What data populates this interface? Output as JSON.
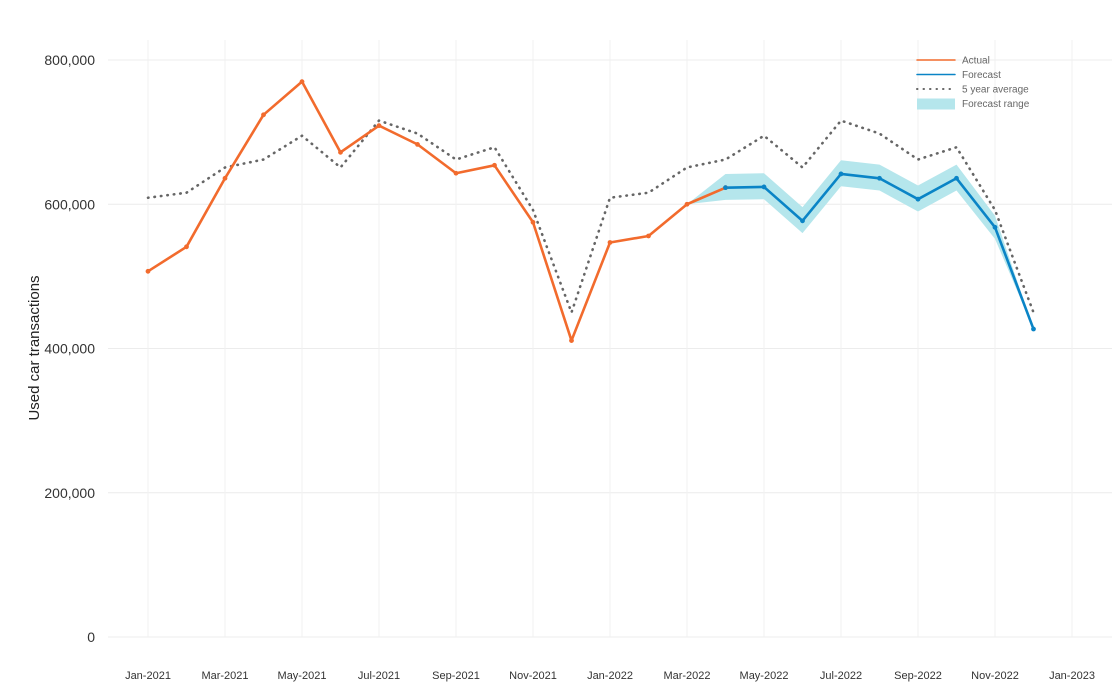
{
  "chart_data": {
    "type": "line",
    "title": "",
    "xlabel": "",
    "ylabel": "Used car transactions",
    "ylim": [
      0,
      800000
    ],
    "yticks": [
      0,
      200000,
      400000,
      600000,
      800000
    ],
    "ytick_labels": [
      "0",
      "200,000",
      "400,000",
      "600,000",
      "800,000"
    ],
    "xlim": [
      "2021-01",
      "2023-01"
    ],
    "xticks": [
      "2021-01",
      "2021-03",
      "2021-05",
      "2021-07",
      "2021-09",
      "2021-11",
      "2022-01",
      "2022-03",
      "2022-05",
      "2022-07",
      "2022-09",
      "2022-11",
      "2023-01"
    ],
    "xtick_labels": [
      "Jan-2021",
      "Mar-2021",
      "May-2021",
      "Jul-2021",
      "Sep-2021",
      "Nov-2021",
      "Jan-2022",
      "Mar-2022",
      "May-2022",
      "Jul-2022",
      "Sep-2022",
      "Nov-2022",
      "Jan-2023"
    ],
    "grid": true,
    "legend_position": "top-right",
    "series": [
      {
        "name": "Actual",
        "color": "#f26b2d",
        "style": "solid",
        "x": [
          "2021-01",
          "2021-02",
          "2021-03",
          "2021-04",
          "2021-05",
          "2021-06",
          "2021-07",
          "2021-08",
          "2021-09",
          "2021-10",
          "2021-11",
          "2021-12",
          "2022-01",
          "2022-02",
          "2022-03",
          "2022-04"
        ],
        "y": [
          507000,
          541000,
          636000,
          724000,
          770000,
          672000,
          709000,
          683000,
          643000,
          654000,
          575000,
          411000,
          547000,
          556000,
          600000,
          623000
        ]
      },
      {
        "name": "Forecast",
        "color": "#0a84c6",
        "style": "solid",
        "x": [
          "2022-04",
          "2022-05",
          "2022-06",
          "2022-07",
          "2022-08",
          "2022-09",
          "2022-10",
          "2022-11",
          "2022-12"
        ],
        "y": [
          623000,
          624000,
          577000,
          642000,
          636000,
          607000,
          636000,
          568000,
          427000
        ]
      },
      {
        "name": "5 year average",
        "color": "#666666",
        "style": "dotted",
        "x": [
          "2021-01",
          "2021-02",
          "2021-03",
          "2021-04",
          "2021-05",
          "2021-06",
          "2021-07",
          "2021-08",
          "2021-09",
          "2021-10",
          "2021-11",
          "2021-12",
          "2022-01",
          "2022-02",
          "2022-03",
          "2022-04",
          "2022-05",
          "2022-06",
          "2022-07",
          "2022-08",
          "2022-09",
          "2022-10",
          "2022-11",
          "2022-12"
        ],
        "y": [
          609000,
          616000,
          651000,
          662000,
          695000,
          651000,
          716000,
          698000,
          662000,
          679000,
          592000,
          450000,
          609000,
          616000,
          651000,
          662000,
          695000,
          651000,
          716000,
          698000,
          662000,
          679000,
          592000,
          450000
        ]
      }
    ],
    "band": {
      "name": "Forecast range",
      "color": "#b5e6ec",
      "x": [
        "2022-03",
        "2022-04",
        "2022-05",
        "2022-06",
        "2022-07",
        "2022-08",
        "2022-09",
        "2022-10",
        "2022-11",
        "2022-12"
      ],
      "low": [
        600000,
        606000,
        607000,
        560000,
        625000,
        619000,
        590000,
        619000,
        552000,
        427000
      ],
      "high": [
        600000,
        642000,
        643000,
        596000,
        661000,
        655000,
        626000,
        655000,
        584000,
        427000
      ]
    },
    "legend": [
      "Actual",
      "Forecast",
      "5 year average",
      "Forecast range"
    ]
  }
}
